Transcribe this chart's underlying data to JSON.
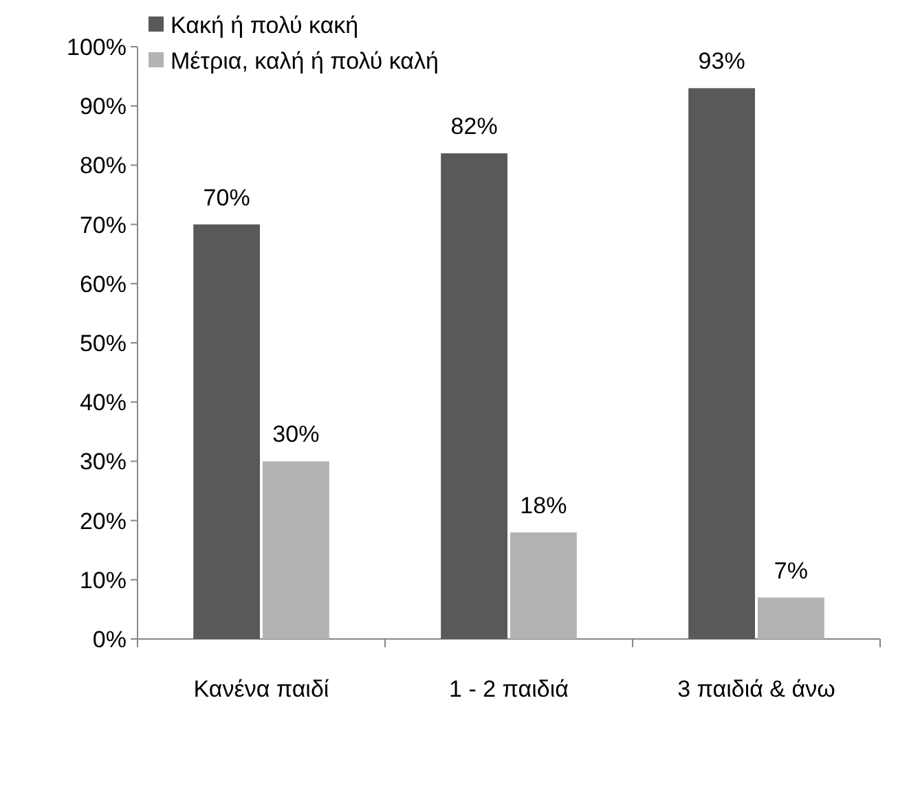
{
  "chart_data": {
    "type": "bar",
    "categories": [
      "Κανένα παιδί",
      "1 - 2 παιδιά",
      "3 παιδιά & άνω"
    ],
    "series": [
      {
        "name": "Κακή ή πολύ κακή",
        "color": "#595959",
        "values": [
          70,
          82,
          93
        ],
        "value_labels": [
          "70%",
          "82%",
          "93%"
        ]
      },
      {
        "name": "Μέτρια, καλή ή πολύ καλή",
        "color": "#b3b3b3",
        "values": [
          30,
          18,
          7
        ],
        "value_labels": [
          "30%",
          "18%",
          "7%"
        ]
      }
    ],
    "ylim": [
      0,
      100
    ],
    "yticks": [
      {
        "value": 0,
        "label": "0%"
      },
      {
        "value": 10,
        "label": "10%"
      },
      {
        "value": 20,
        "label": "20%"
      },
      {
        "value": 30,
        "label": "30%"
      },
      {
        "value": 40,
        "label": "40%"
      },
      {
        "value": 50,
        "label": "50%"
      },
      {
        "value": 60,
        "label": "60%"
      },
      {
        "value": 70,
        "label": "70%"
      },
      {
        "value": 80,
        "label": "80%"
      },
      {
        "value": 90,
        "label": "90%"
      },
      {
        "value": 100,
        "label": "100%"
      }
    ],
    "grid": false,
    "legend": "top left"
  }
}
